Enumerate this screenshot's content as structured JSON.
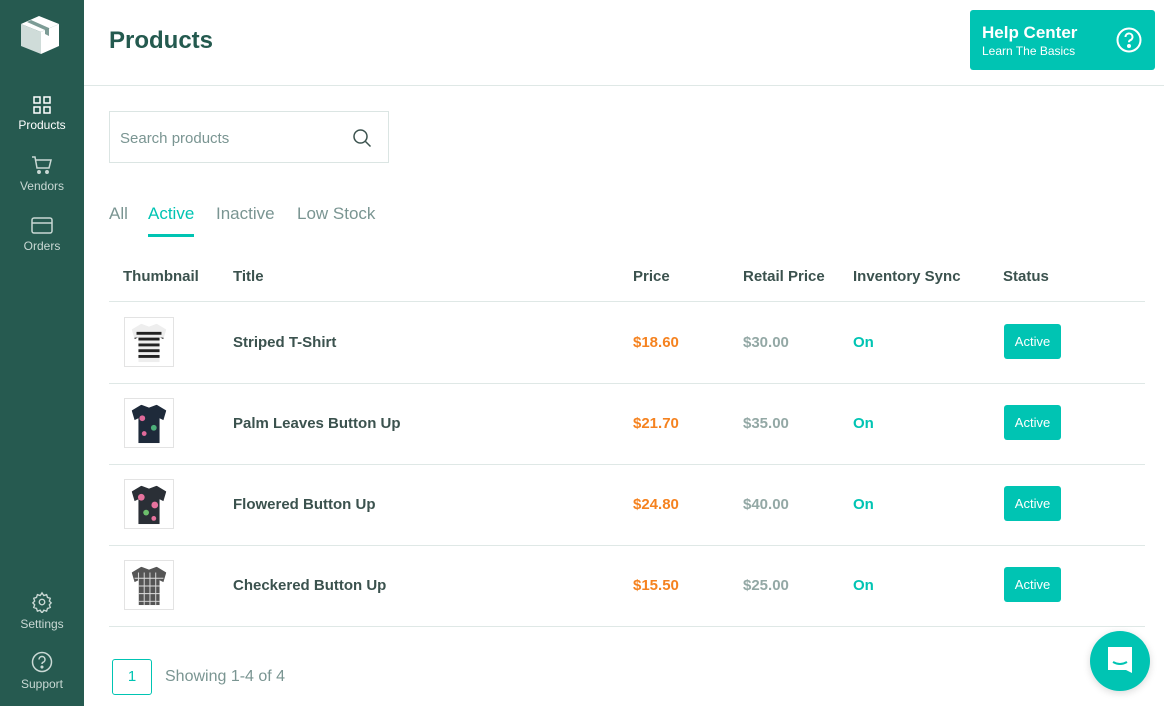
{
  "sidebar": {
    "items": [
      {
        "label": "Products",
        "icon": "grid-icon"
      },
      {
        "label": "Vendors",
        "icon": "cart-icon"
      },
      {
        "label": "Orders",
        "icon": "card-icon"
      },
      {
        "label": "Settings",
        "icon": "gear-icon"
      },
      {
        "label": "Support",
        "icon": "help-icon"
      }
    ]
  },
  "header": {
    "title": "Products",
    "help_title": "Help Center",
    "help_subtitle": "Learn The Basics"
  },
  "search": {
    "placeholder": "Search products"
  },
  "tabs": [
    "All",
    "Active",
    "Inactive",
    "Low Stock"
  ],
  "table": {
    "columns": [
      "Thumbnail",
      "Title",
      "Price",
      "Retail Price",
      "Inventory Sync",
      "Status"
    ],
    "rows": [
      {
        "title": "Striped T-Shirt",
        "price": "$18.60",
        "retail": "$30.00",
        "sync": "On",
        "status": "Active"
      },
      {
        "title": "Palm Leaves Button Up",
        "price": "$21.70",
        "retail": "$35.00",
        "sync": "On",
        "status": "Active"
      },
      {
        "title": "Flowered Button Up",
        "price": "$24.80",
        "retail": "$40.00",
        "sync": "On",
        "status": "Active"
      },
      {
        "title": "Checkered Button Up",
        "price": "$15.50",
        "retail": "$25.00",
        "sync": "On",
        "status": "Active"
      }
    ]
  },
  "pagination": {
    "page": "1",
    "showing": "Showing 1-4 of 4"
  },
  "colors": {
    "sidebar": "#265a50",
    "accent": "#00c4b3",
    "price": "#f5821f"
  }
}
